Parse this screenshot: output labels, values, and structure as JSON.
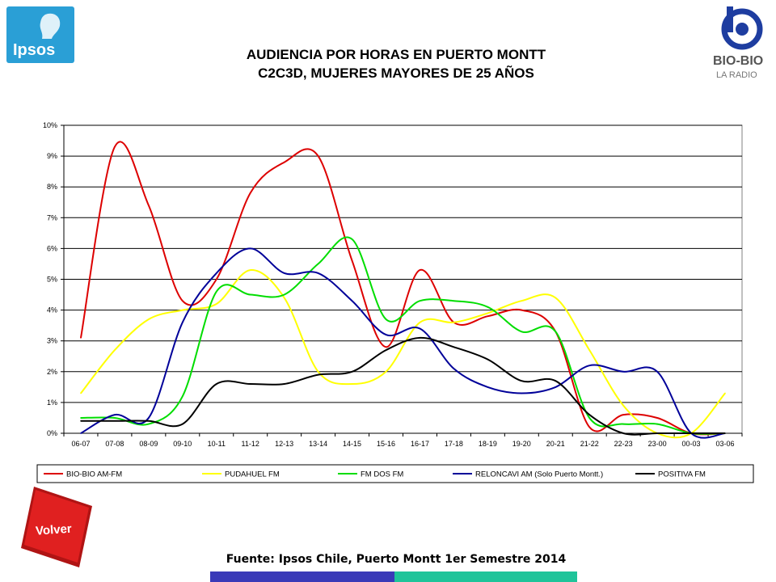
{
  "header": {
    "title_line1": "AUDIENCIA POR HORAS EN PUERTO MONTT",
    "title_line2": "C2C3D, MUJERES MAYORES DE 25 AÑOS"
  },
  "logos": {
    "left": "Ipsos",
    "right_line1": "BIO-BIO",
    "right_line2": "LA RADIO"
  },
  "volver_button": {
    "label": "Volver"
  },
  "source_text": "Fuente: Ipsos Chile, Puerto Montt 1er Semestre 2014",
  "colors": {
    "ipsos_blue": "#2a9fd6",
    "volver_red": "#dc1e1e",
    "bar_blue": "#3a3ab8",
    "bar_teal": "#1fc49a"
  },
  "chart_data": {
    "type": "line",
    "categories": [
      "06-07",
      "07-08",
      "08-09",
      "09-10",
      "10-11",
      "11-12",
      "12-13",
      "13-14",
      "14-15",
      "15-16",
      "16-17",
      "17-18",
      "18-19",
      "19-20",
      "20-21",
      "21-22",
      "22-23",
      "23-00",
      "00-03",
      "03-06"
    ],
    "y_tick_labels": [
      "0%",
      "1%",
      "2%",
      "3%",
      "4%",
      "5%",
      "6%",
      "7%",
      "8%",
      "9%",
      "10%"
    ],
    "ylim": [
      0,
      10
    ],
    "grid": true,
    "legend_position": "bottom",
    "series": [
      {
        "name": "BIO-BIO AM-FM",
        "color": "#dd0000",
        "values": [
          3.1,
          9.3,
          7.4,
          4.3,
          5.0,
          7.8,
          8.8,
          9.0,
          5.6,
          2.8,
          5.3,
          3.6,
          3.8,
          4.0,
          3.3,
          0.2,
          0.6,
          0.5,
          0.0,
          0.0
        ]
      },
      {
        "name": "PUDAHUEL FM",
        "color": "#ffff00",
        "values": [
          1.3,
          2.7,
          3.7,
          4.0,
          4.2,
          5.3,
          4.4,
          2.0,
          1.6,
          2.0,
          3.6,
          3.6,
          3.9,
          4.3,
          4.4,
          2.7,
          0.9,
          0.0,
          0.0,
          1.3
        ]
      },
      {
        "name": "FM DOS FM",
        "color": "#00dd00",
        "values": [
          0.5,
          0.5,
          0.3,
          1.2,
          4.6,
          4.5,
          4.5,
          5.5,
          6.3,
          3.7,
          4.3,
          4.3,
          4.1,
          3.3,
          3.3,
          0.5,
          0.3,
          0.3,
          0.0,
          0.0
        ]
      },
      {
        "name": "RELONCAVI AM (Solo Puerto Montt.)",
        "color": "#000099",
        "values": [
          0.0,
          0.6,
          0.5,
          3.6,
          5.2,
          6.0,
          5.2,
          5.2,
          4.3,
          3.2,
          3.4,
          2.1,
          1.5,
          1.3,
          1.5,
          2.2,
          2.0,
          2.0,
          0.0,
          0.0
        ]
      },
      {
        "name": "POSITIVA FM",
        "color": "#000000",
        "values": [
          0.4,
          0.4,
          0.4,
          0.3,
          1.6,
          1.6,
          1.6,
          1.9,
          2.0,
          2.7,
          3.1,
          2.8,
          2.4,
          1.7,
          1.7,
          0.6,
          0.0,
          0.0,
          0.0,
          0.0
        ]
      }
    ]
  }
}
